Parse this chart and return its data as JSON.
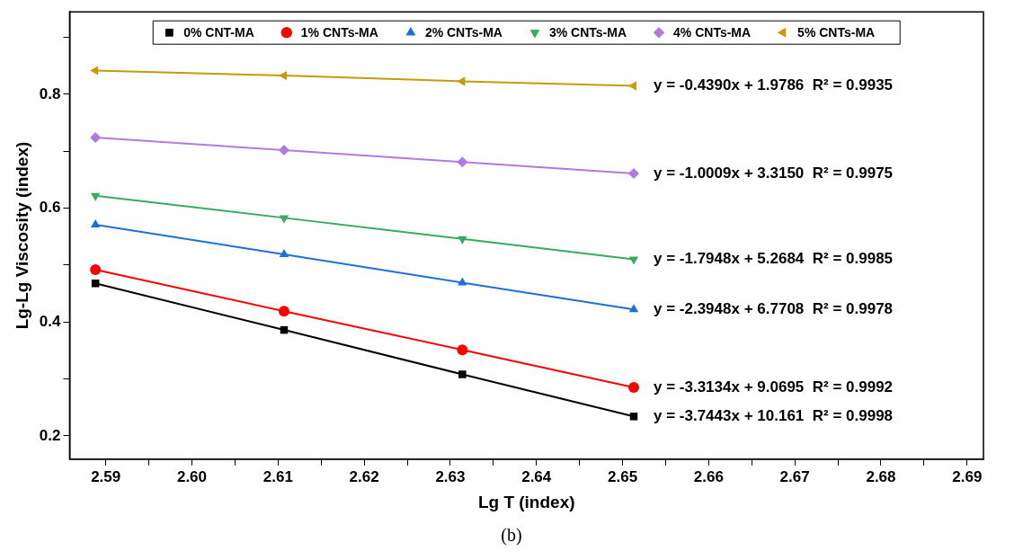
{
  "chart_data": {
    "type": "line",
    "xlabel": "Lg T (index)",
    "ylabel": "Lg-Lg Viscosity (index)",
    "x": [
      2.5888,
      2.6107,
      2.6314,
      2.6513
    ],
    "series": [
      {
        "name": "0% CNT-MA",
        "color": "#000000",
        "marker": "square",
        "values": [
          0.468,
          0.386,
          0.308,
          0.234
        ]
      },
      {
        "name": "1% CNTs-MA",
        "color": "#ff0000",
        "marker": "circle",
        "values": [
          0.492,
          0.419,
          0.351,
          0.285
        ]
      },
      {
        "name": "2% CNTs-MA",
        "color": "#1f6fd8",
        "marker": "triangle",
        "values": [
          0.571,
          0.519,
          0.469,
          0.422
        ]
      },
      {
        "name": "3% CNTs-MA",
        "color": "#3aaa63",
        "marker": "triangle-down",
        "values": [
          0.622,
          0.583,
          0.546,
          0.51
        ]
      },
      {
        "name": "4% CNTs-MA",
        "color": "#b07be0",
        "marker": "diamond",
        "values": [
          0.724,
          0.702,
          0.681,
          0.661
        ]
      },
      {
        "name": "5% CNTs-MA",
        "color": "#c99a06",
        "marker": "triangle-left",
        "values": [
          0.842,
          0.833,
          0.823,
          0.815
        ]
      }
    ],
    "xlim": [
      2.5858,
      2.6919
    ],
    "xticks": [
      {
        "value": 2.59,
        "label": "2.59"
      },
      {
        "value": 2.595,
        "label": null
      },
      {
        "value": 2.6,
        "label": "2.60"
      },
      {
        "value": 2.605,
        "label": null
      },
      {
        "value": 2.61,
        "label": "2.61"
      },
      {
        "value": 2.615,
        "label": null
      },
      {
        "value": 2.62,
        "label": "2.62"
      },
      {
        "value": 2.625,
        "label": null
      },
      {
        "value": 2.63,
        "label": "2.63"
      },
      {
        "value": 2.635,
        "label": null
      },
      {
        "value": 2.64,
        "label": "2.64"
      },
      {
        "value": 2.645,
        "label": null
      },
      {
        "value": 2.65,
        "label": "2.65"
      },
      {
        "value": 2.655,
        "label": null
      },
      {
        "value": 2.66,
        "label": "2.66"
      },
      {
        "value": 2.665,
        "label": null
      },
      {
        "value": 2.67,
        "label": "2.67"
      },
      {
        "value": 2.675,
        "label": null
      },
      {
        "value": 2.68,
        "label": "2.68"
      },
      {
        "value": 2.685,
        "label": null
      },
      {
        "value": 2.69,
        "label": "2.69"
      }
    ],
    "ylim": [
      0.159,
      0.945
    ],
    "yticks": [
      {
        "value": 0.2,
        "label": "0.2"
      },
      {
        "value": 0.3,
        "label": null
      },
      {
        "value": 0.4,
        "label": "0.4"
      },
      {
        "value": 0.5,
        "label": null
      },
      {
        "value": 0.6,
        "label": "0.6"
      },
      {
        "value": 0.7,
        "label": null
      },
      {
        "value": 0.8,
        "label": "0.8"
      },
      {
        "value": 0.9,
        "label": null
      }
    ],
    "grid": false,
    "legend": "top",
    "line_style": "solid",
    "annotations": [
      "y = -0.4390x + 1.9786  R² = 0.9935",
      "y = -1.0009x + 3.3150  R² = 0.9975",
      "y = -1.7948x + 5.2684  R² = 0.9985",
      "y = -2.3948x + 6.7708  R² = 0.9978",
      "y = -3.3134x + 9.0695  R² = 0.9992",
      "y = -3.7443x + 10.161  R² = 0.9998",
      "(b)"
    ]
  }
}
